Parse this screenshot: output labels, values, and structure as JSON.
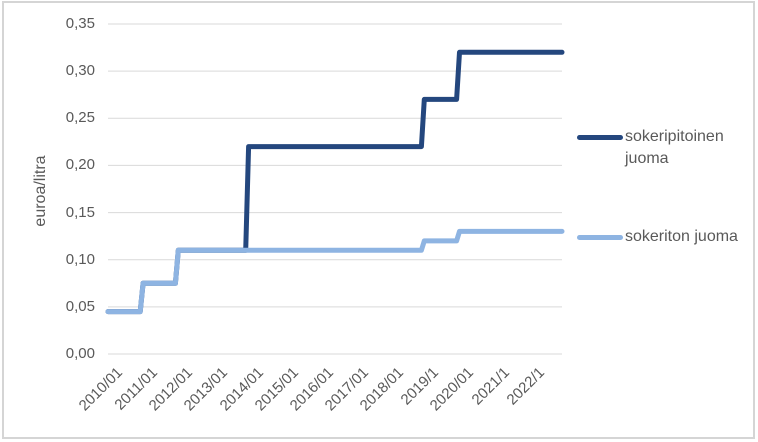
{
  "chart_data": {
    "type": "line",
    "subtype": "step",
    "title": "",
    "xlabel": "",
    "ylabel": "euroa/litra",
    "grid": "horizontal",
    "legend_position": "right",
    "y_axis": {
      "min": 0,
      "max": 0.35,
      "step": 0.05,
      "decimal_separator": ",",
      "tick_labels": [
        "0,00",
        "0,05",
        "0,10",
        "0,15",
        "0,20",
        "0,25",
        "0,30",
        "0,35"
      ]
    },
    "x_axis": {
      "start": "2010/01",
      "end": "2022/12",
      "tick_interval_months": 12,
      "tick_labels": [
        "2010/01",
        "2011/01",
        "2012/01",
        "2013/01",
        "2014/01",
        "2015/01",
        "2016/01",
        "2017/01",
        "2018/01",
        "2019/1",
        "2020/01",
        "2021/1",
        "2022/1"
      ]
    },
    "series": [
      {
        "name": "sokeripitoinen juoma",
        "color": "#24477E",
        "steps": [
          {
            "from": "2010/01",
            "value": 0.045
          },
          {
            "from": "2011/01",
            "value": 0.075
          },
          {
            "from": "2012/01",
            "value": 0.11
          },
          {
            "from": "2014/01",
            "value": 0.22
          },
          {
            "from": "2019/01",
            "value": 0.27
          },
          {
            "from": "2020/01",
            "value": 0.32
          }
        ]
      },
      {
        "name": "sokeriton juoma",
        "color": "#8EB4E2",
        "steps": [
          {
            "from": "2010/01",
            "value": 0.045
          },
          {
            "from": "2011/01",
            "value": 0.075
          },
          {
            "from": "2012/01",
            "value": 0.11
          },
          {
            "from": "2019/01",
            "value": 0.12
          },
          {
            "from": "2020/01",
            "value": 0.13
          }
        ]
      }
    ]
  },
  "colors": {
    "axis_text": "#595959",
    "gridline": "#D9D9D9",
    "border": "#D5D5D5",
    "background": "#FFFFFF"
  }
}
